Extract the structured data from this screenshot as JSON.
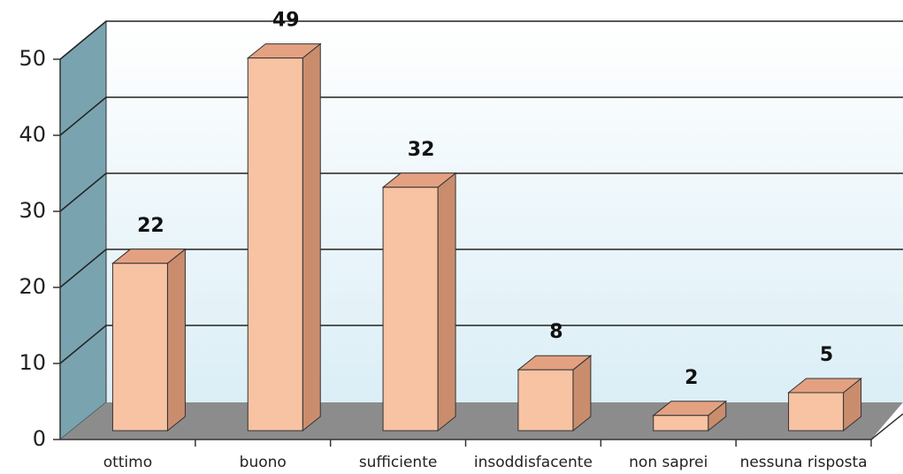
{
  "chart_data": {
    "type": "bar3d",
    "categories": [
      "ottimo",
      "buono",
      "sufficiente",
      "insoddisfacente",
      "non saprei",
      "nessuna risposta"
    ],
    "values": [
      22,
      49,
      32,
      8,
      2,
      5
    ],
    "color": "#f8c3a3",
    "ylim": [
      0,
      50
    ],
    "yticks": [
      0,
      10,
      20,
      30,
      40,
      50
    ],
    "grid": true
  }
}
